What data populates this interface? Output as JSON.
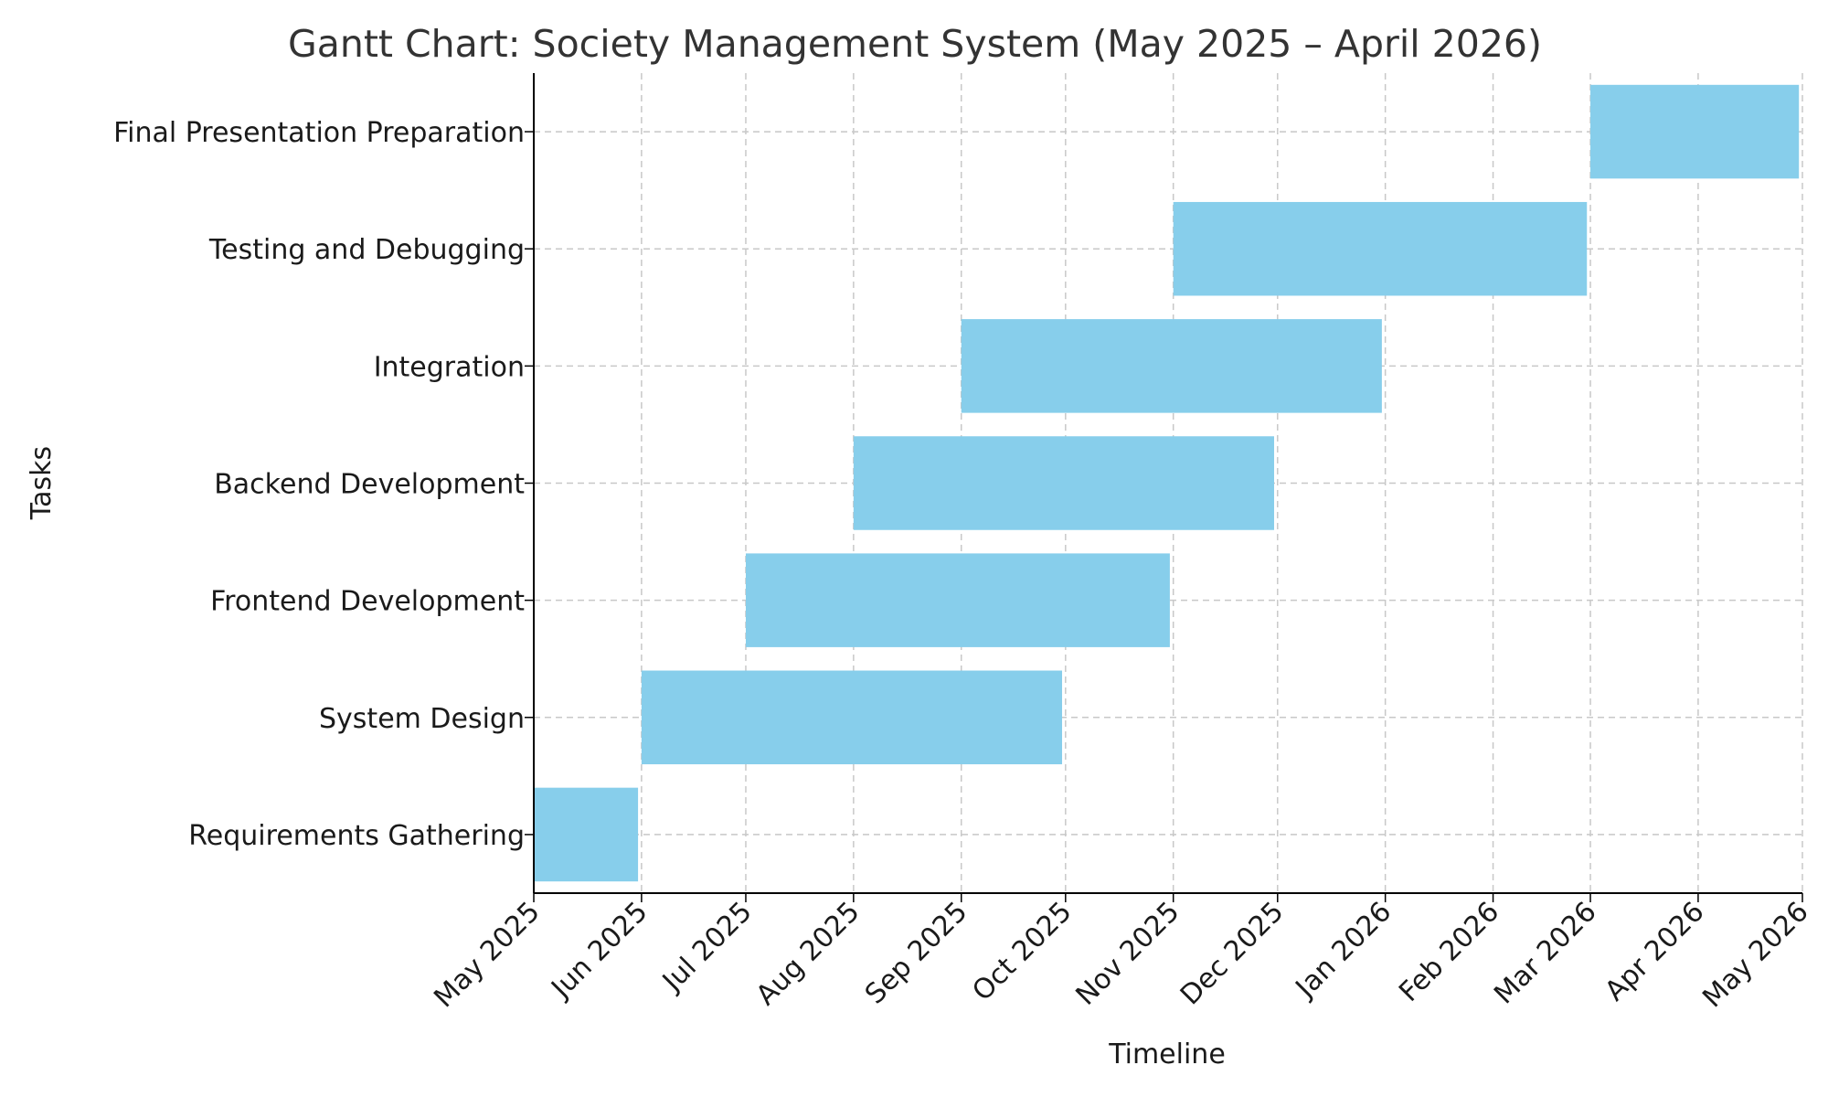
{
  "chart_data": {
    "type": "gantt",
    "title": "Gantt Chart: Society Management System (May 2025 – April 2026)",
    "xlabel": "Timeline",
    "ylabel": "Tasks",
    "bar_color": "#87ceeb",
    "grid": true,
    "xlim": [
      "2025-05-01",
      "2026-05-01"
    ],
    "x_ticks": [
      {
        "date": "2025-05-01",
        "label": "May 2025"
      },
      {
        "date": "2025-06-01",
        "label": "Jun 2025"
      },
      {
        "date": "2025-07-01",
        "label": "Jul 2025"
      },
      {
        "date": "2025-08-01",
        "label": "Aug 2025"
      },
      {
        "date": "2025-09-01",
        "label": "Sep 2025"
      },
      {
        "date": "2025-10-01",
        "label": "Oct 2025"
      },
      {
        "date": "2025-11-01",
        "label": "Nov 2025"
      },
      {
        "date": "2025-12-01",
        "label": "Dec 2025"
      },
      {
        "date": "2026-01-01",
        "label": "Jan 2026"
      },
      {
        "date": "2026-02-01",
        "label": "Feb 2026"
      },
      {
        "date": "2026-03-01",
        "label": "Mar 2026"
      },
      {
        "date": "2026-04-01",
        "label": "Apr 2026"
      },
      {
        "date": "2026-05-01",
        "label": "May 2026"
      }
    ],
    "tasks": [
      {
        "name": "Requirements Gathering",
        "start": "2025-05-01",
        "end": "2025-05-31"
      },
      {
        "name": "System Design",
        "start": "2025-06-01",
        "end": "2025-09-30"
      },
      {
        "name": "Frontend Development",
        "start": "2025-07-01",
        "end": "2025-10-31"
      },
      {
        "name": "Backend Development",
        "start": "2025-08-01",
        "end": "2025-11-30"
      },
      {
        "name": "Integration",
        "start": "2025-09-01",
        "end": "2025-12-31"
      },
      {
        "name": "Testing and Debugging",
        "start": "2025-11-01",
        "end": "2026-02-28"
      },
      {
        "name": "Final Presentation Preparation",
        "start": "2026-03-01",
        "end": "2026-04-30"
      }
    ]
  }
}
